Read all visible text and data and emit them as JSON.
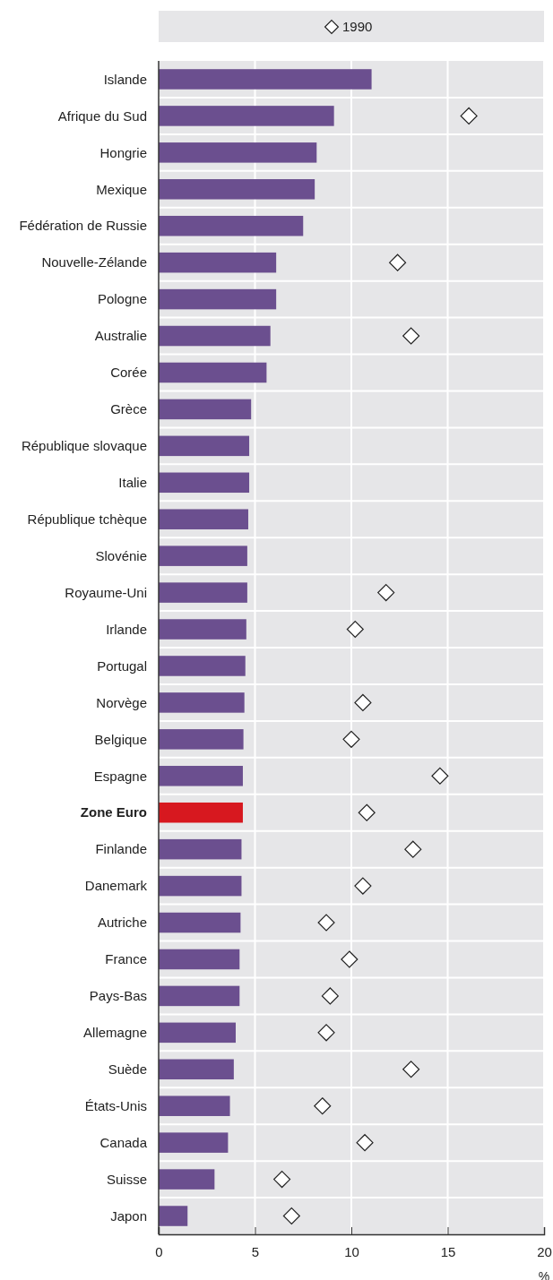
{
  "chart_data": {
    "type": "bar",
    "orientation": "horizontal",
    "xlabel": "%",
    "xlim": [
      0,
      20
    ],
    "xticks": [
      0,
      5,
      10,
      15,
      20
    ],
    "grid": true,
    "legend": "top",
    "categories": [
      "Islande",
      "Afrique du Sud",
      "Hongrie",
      "Mexique",
      "Fédération de Russie",
      "Nouvelle-Zélande",
      "Pologne",
      "Australie",
      "Corée",
      "Grèce",
      "République slovaque",
      "Italie",
      "République tchèque",
      "Slovénie",
      "Royaume-Uni",
      "Irlande",
      "Portugal",
      "Norvège",
      "Belgique",
      "Espagne",
      "Zone Euro",
      "Finlande",
      "Danemark",
      "Autriche",
      "France",
      "Pays-Bas",
      "Allemagne",
      "Suède",
      "États-Unis",
      "Canada",
      "Suisse",
      "Japon"
    ],
    "series": [
      {
        "color": "#6b4f8f",
        "colors": [
          "#6b4f8f",
          "#6b4f8f",
          "#6b4f8f",
          "#6b4f8f",
          "#6b4f8f",
          "#6b4f8f",
          "#6b4f8f",
          "#6b4f8f",
          "#6b4f8f",
          "#6b4f8f",
          "#6b4f8f",
          "#6b4f8f",
          "#6b4f8f",
          "#6b4f8f",
          "#6b4f8f",
          "#6b4f8f",
          "#6b4f8f",
          "#6b4f8f",
          "#6b4f8f",
          "#6b4f8f",
          "#d7181f",
          "#6b4f8f",
          "#6b4f8f",
          "#6b4f8f",
          "#6b4f8f",
          "#6b4f8f",
          "#6b4f8f",
          "#6b4f8f",
          "#6b4f8f",
          "#6b4f8f",
          "#6b4f8f",
          "#6b4f8f"
        ],
        "values": [
          11.05,
          9.1,
          8.2,
          8.1,
          7.5,
          6.1,
          6.1,
          5.8,
          5.6,
          4.8,
          4.7,
          4.7,
          4.65,
          4.6,
          4.6,
          4.55,
          4.5,
          4.45,
          4.4,
          4.37,
          4.37,
          4.3,
          4.3,
          4.25,
          4.2,
          4.2,
          4.0,
          3.9,
          3.7,
          3.6,
          2.9,
          1.5
        ]
      },
      {
        "type": "scatter",
        "name": "1990",
        "marker": "diamond",
        "color": "#ffffff",
        "x": [
          "Islande",
          "Afrique du Sud",
          "Hongrie",
          "Mexique",
          "Fédération de Russie",
          "Nouvelle-Zélande",
          "Pologne",
          "Australie",
          "Corée",
          "Grèce",
          "République slovaque",
          "Italie",
          "République tchèque",
          "Slovénie",
          "Royaume-Uni",
          "Irlande",
          "Portugal",
          "Norvège",
          "Belgique",
          "Espagne",
          "Zone Euro",
          "Finlande",
          "Danemark",
          "Autriche",
          "France",
          "Pays-Bas",
          "Allemagne",
          "Suède",
          "États-Unis",
          "Canada",
          "Suisse",
          "Japon"
        ],
        "values": [
          null,
          16.1,
          null,
          null,
          null,
          12.4,
          null,
          13.1,
          null,
          null,
          null,
          null,
          null,
          null,
          11.8,
          10.2,
          null,
          10.6,
          10.0,
          14.6,
          10.8,
          13.2,
          10.6,
          8.7,
          9.9,
          8.9,
          8.7,
          13.1,
          8.5,
          10.7,
          6.4,
          6.9
        ]
      }
    ]
  }
}
